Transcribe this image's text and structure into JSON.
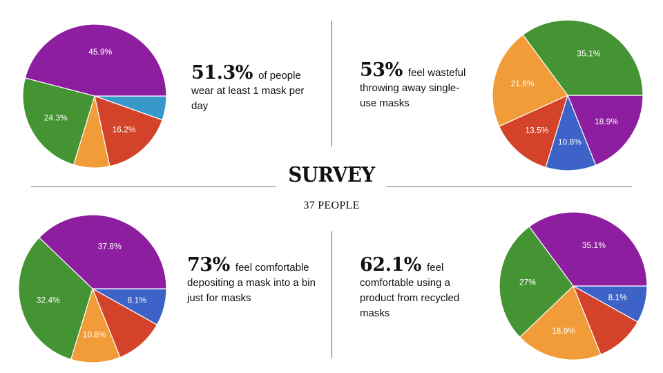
{
  "header": {
    "title": "SURVEY",
    "subtitle": "37 PEOPLE"
  },
  "colors": {
    "purple": "#8e1ea0",
    "blue": "#3d63c8",
    "red": "#d2432a",
    "orange": "#f19c38",
    "green": "#449433",
    "teal": "#3898c9"
  },
  "stats": [
    {
      "big": "51.3%",
      "rest": "of people wear at least 1 mask per day"
    },
    {
      "big": "53%",
      "rest": "feel wasteful throwing away single-use masks"
    },
    {
      "big": "73%",
      "rest": "feel comfortable depositing a mask into a bin just for masks"
    },
    {
      "big": "62.1%",
      "rest": "feel comfortable using a product from recycled masks"
    }
  ],
  "chart_data": [
    {
      "type": "pie",
      "slices": [
        {
          "value": 5.4,
          "label": "",
          "color": "#3898c9"
        },
        {
          "value": 16.2,
          "label": "16.2%",
          "color": "#d2432a"
        },
        {
          "value": 8.1,
          "label": "",
          "color": "#f19c38"
        },
        {
          "value": 24.3,
          "label": "24.3%",
          "color": "#449433"
        },
        {
          "value": 45.9,
          "label": "45.9%",
          "color": "#8e1ea0"
        }
      ]
    },
    {
      "type": "pie",
      "slices": [
        {
          "value": 18.9,
          "label": "18.9%",
          "color": "#8e1ea0"
        },
        {
          "value": 10.8,
          "label": "10.8%",
          "color": "#3d63c8"
        },
        {
          "value": 13.5,
          "label": "13.5%",
          "color": "#d2432a"
        },
        {
          "value": 21.6,
          "label": "21.6%",
          "color": "#f19c38"
        },
        {
          "value": 35.1,
          "label": "35.1%",
          "color": "#449433"
        }
      ]
    },
    {
      "type": "pie",
      "slices": [
        {
          "value": 8.1,
          "label": "8.1%",
          "color": "#3d63c8"
        },
        {
          "value": 10.8,
          "label": "",
          "color": "#d2432a"
        },
        {
          "value": 10.8,
          "label": "10.8%",
          "color": "#f19c38"
        },
        {
          "value": 32.4,
          "label": "32.4%",
          "color": "#449433"
        },
        {
          "value": 37.8,
          "label": "37.8%",
          "color": "#8e1ea0"
        }
      ]
    },
    {
      "type": "pie",
      "slices": [
        {
          "value": 8.1,
          "label": "8.1%",
          "color": "#3d63c8"
        },
        {
          "value": 10.8,
          "label": "",
          "color": "#d2432a"
        },
        {
          "value": 18.9,
          "label": "18.9%",
          "color": "#f19c38"
        },
        {
          "value": 27,
          "label": "27%",
          "color": "#449433"
        },
        {
          "value": 35.1,
          "label": "35.1%",
          "color": "#8e1ea0"
        }
      ]
    }
  ]
}
